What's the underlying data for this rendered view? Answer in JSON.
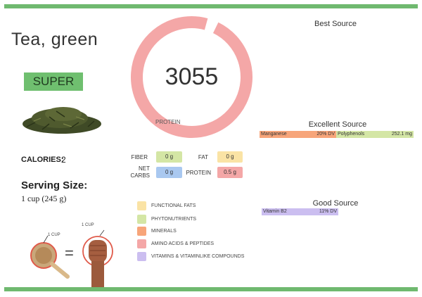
{
  "title": "Tea, green",
  "badge": "SUPER",
  "calories": {
    "label": "CALORIES:",
    "value": "2"
  },
  "serving": {
    "label": "Serving Size:",
    "value": "1 cup (245 g)"
  },
  "illustration": {
    "cup_label_1": "1 CUP",
    "cup_label_2": "1 CUP",
    "equals": "="
  },
  "donut": {
    "value": "3055",
    "label": "PROTEIN",
    "protein_share": 0.97,
    "color": "#f4a7a7"
  },
  "nutrients": {
    "fiber": {
      "label": "FIBER",
      "value": "0 g",
      "color": "#d4e6a5"
    },
    "fat": {
      "label": "FAT",
      "value": "0 g",
      "color": "#fae3a5"
    },
    "net_carbs": {
      "label_line1": "NET",
      "label_line2": "CARBS",
      "value": "0 g",
      "color": "#a9c8f0"
    },
    "protein": {
      "label": "PROTEIN",
      "value": "0.5 g",
      "color": "#f4a7a7"
    }
  },
  "legend": [
    {
      "label": "FUNCTIONAL FATS",
      "color": "#fae3a5"
    },
    {
      "label": "PHYTONUTRIENTS",
      "color": "#d4e6a5"
    },
    {
      "label": "MINERALS",
      "color": "#f7a57a"
    },
    {
      "label": "AMINO ACIDS & PEPTIDES",
      "color": "#f4a7a7"
    },
    {
      "label": "VITAMINS & VITAMINLIKE COMPOUNDS",
      "color": "#cbbef0"
    }
  ],
  "sources": {
    "best": {
      "heading": "Best Source"
    },
    "excellent": {
      "heading": "Excellent Source",
      "items": [
        {
          "name": "Manganese",
          "value": "20% DV",
          "color": "#f7a57a"
        },
        {
          "name": "Polyphenols",
          "value": "252.1 mg",
          "color": "#d4e6a5"
        }
      ]
    },
    "good": {
      "heading": "Good Source",
      "items": [
        {
          "name": "Vitamin B2",
          "value": "11% DV",
          "color": "#cbbef0"
        }
      ]
    }
  }
}
